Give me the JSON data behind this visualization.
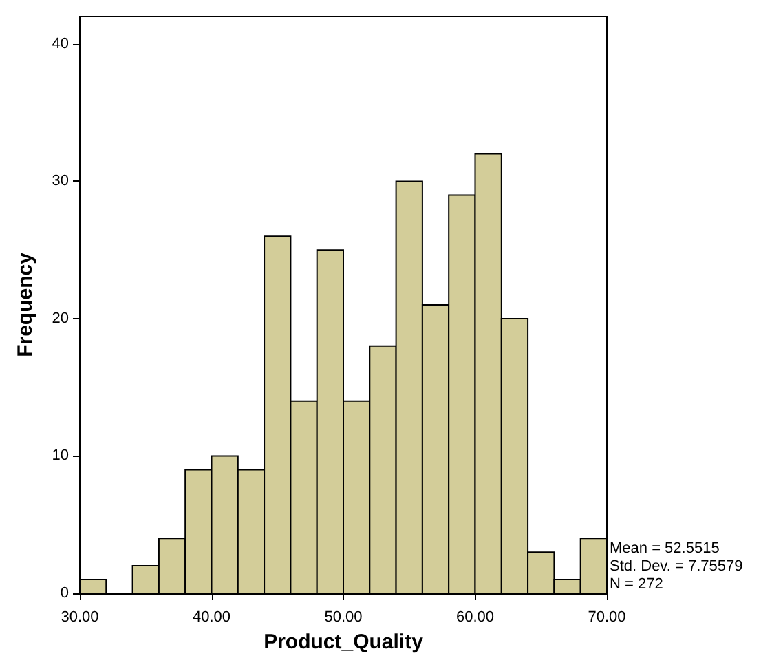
{
  "chart_data": {
    "type": "histogram",
    "xlabel": "Product_Quality",
    "ylabel": "Frequency",
    "bins": [
      30,
      32,
      34,
      36,
      38,
      40,
      42,
      44,
      46,
      48,
      50,
      52,
      54,
      56,
      58,
      60,
      62,
      64,
      66,
      68,
      70
    ],
    "values": [
      1,
      0,
      2,
      4,
      9,
      10,
      9,
      26,
      14,
      25,
      14,
      18,
      30,
      21,
      29,
      32,
      20,
      3,
      1,
      4
    ],
    "color": "#d3cd99",
    "xlim": [
      30,
      70
    ],
    "xticks": [
      {
        "value": 30,
        "label": "30.00"
      },
      {
        "value": 40,
        "label": "40.00"
      },
      {
        "value": 50,
        "label": "50.00"
      },
      {
        "value": 60,
        "label": "60.00"
      },
      {
        "value": 70,
        "label": "70.00"
      }
    ],
    "ylim": [
      0,
      42
    ],
    "yticks": [
      0,
      10,
      20,
      30,
      40
    ],
    "grid": false,
    "annotations": [
      "Mean = 52.5515",
      "Std. Dev. = 7.75579",
      "N = 272"
    ]
  }
}
